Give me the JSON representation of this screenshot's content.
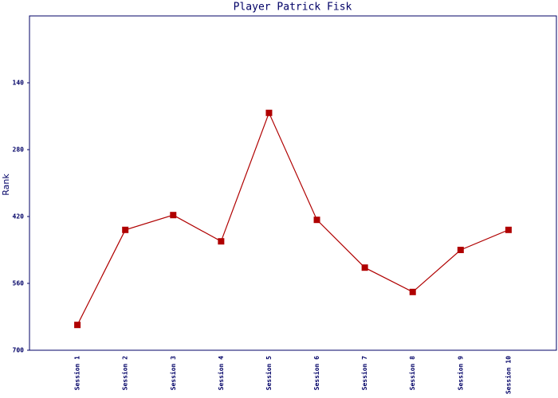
{
  "chart_data": {
    "type": "line",
    "title": "Player Patrick Fisk",
    "y_label": "Rank",
    "categories": [
      "Session 1",
      "Session 2",
      "Session 3",
      "Session 4",
      "Session 5",
      "Session 6",
      "Session 7",
      "Session 8",
      "Session 9",
      "Session 10"
    ],
    "values": [
      647,
      448,
      417,
      472,
      203,
      427,
      527,
      578,
      490,
      448
    ],
    "color": "#b00000",
    "ylim": [
      0,
      700
    ],
    "yticks": [
      140,
      280,
      420,
      560,
      700
    ],
    "invert_y": true,
    "grid": false
  }
}
